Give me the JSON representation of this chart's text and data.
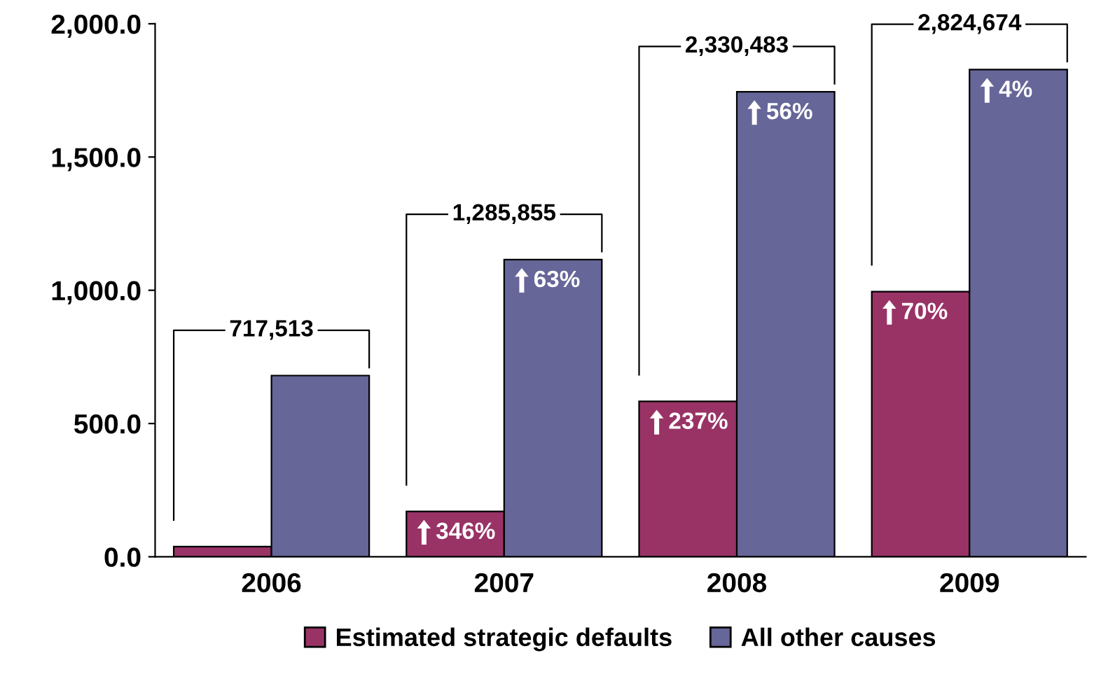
{
  "chart_data": {
    "type": "bar",
    "categories": [
      "2006",
      "2007",
      "2008",
      "2009"
    ],
    "series": [
      {
        "name": "Estimated strategic defaults",
        "color": "#993366",
        "values": [
          38,
          170,
          583,
          995
        ]
      },
      {
        "name": "All other causes",
        "color": "#666699",
        "values": [
          680,
          1115,
          1745,
          1828
        ]
      }
    ],
    "annotations": [
      "717,513",
      "1,285,855",
      "2,330,483",
      "2,824,674",
      {
        "text": "346%",
        "x": "2007",
        "y": 170
      },
      {
        "text": "63%",
        "x": "2007",
        "y": 1115
      },
      {
        "text": "237%",
        "x": "2008",
        "y": 583
      },
      {
        "text": "56%",
        "x": "2008",
        "y": 1745
      },
      {
        "text": "70%",
        "x": "2009",
        "y": 995
      },
      {
        "text": "4%",
        "x": "2009",
        "y": 1828
      }
    ],
    "ylim": [
      0,
      2000
    ],
    "yticks": [
      {
        "value": 0,
        "label": "0.0"
      },
      {
        "value": 500,
        "label": "500.0"
      },
      {
        "value": 1000,
        "label": "1,000.0"
      },
      {
        "value": 1500,
        "label": "1,500.0"
      },
      {
        "value": 2000,
        "label": "2,000.0"
      }
    ],
    "grid": false,
    "legend": "bottom"
  }
}
